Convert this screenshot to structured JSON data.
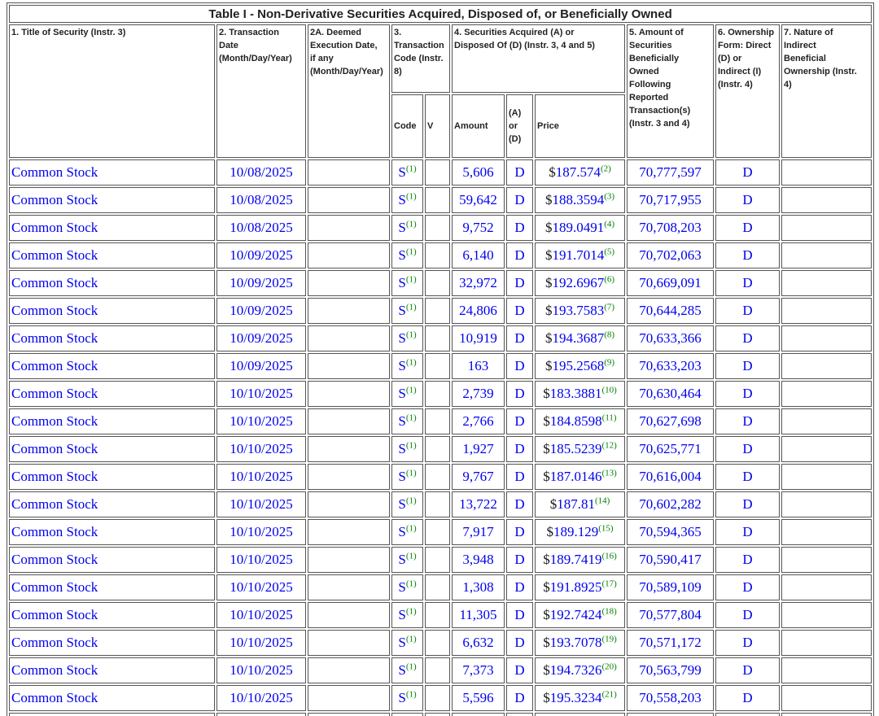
{
  "table": {
    "caption": "Table I - Non-Derivative Securities Acquired, Disposed of, or Beneficially Owned",
    "currency_symbol": "$",
    "columns": {
      "title": "1. Title of Security (Instr. 3)",
      "transaction_date": "2. Transaction\nDate\n(Month/Day/Year)",
      "deemed_execution_date": "2A. Deemed\nExecution Date,\nif any\n(Month/Day/Year)",
      "transaction_code": "3.\nTransaction\nCode (Instr.\n8)",
      "securities_acquired_disposed": "4. Securities Acquired (A) or\nDisposed Of (D) (Instr. 3, 4 and 5)",
      "amount_owned_following": "5. Amount of\nSecurities\nBeneficially\nOwned\nFollowing\nReported\nTransaction(s)\n(Instr. 3 and 4)",
      "ownership_form": "6. Ownership\nForm: Direct\n(D) or\nIndirect (I)\n(Instr. 4)",
      "nature_indirect": "7. Nature of\nIndirect\nBeneficial\nOwnership (Instr.\n4)",
      "sub_code": "Code",
      "sub_v": "V",
      "sub_amount": "Amount",
      "sub_ad": "(A) or\n(D)",
      "sub_price": "Price"
    },
    "rows": [
      {
        "title": "Common Stock",
        "date": "10/08/2025",
        "deemed": "",
        "code": "S",
        "code_fn": "(1)",
        "v": "",
        "amount": "5,606",
        "ad": "D",
        "price": "187.574",
        "price_fn": "(2)",
        "owned": "70,777,597",
        "form": "D",
        "nature": ""
      },
      {
        "title": "Common Stock",
        "date": "10/08/2025",
        "deemed": "",
        "code": "S",
        "code_fn": "(1)",
        "v": "",
        "amount": "59,642",
        "ad": "D",
        "price": "188.3594",
        "price_fn": "(3)",
        "owned": "70,717,955",
        "form": "D",
        "nature": ""
      },
      {
        "title": "Common Stock",
        "date": "10/08/2025",
        "deemed": "",
        "code": "S",
        "code_fn": "(1)",
        "v": "",
        "amount": "9,752",
        "ad": "D",
        "price": "189.0491",
        "price_fn": "(4)",
        "owned": "70,708,203",
        "form": "D",
        "nature": ""
      },
      {
        "title": "Common Stock",
        "date": "10/09/2025",
        "deemed": "",
        "code": "S",
        "code_fn": "(1)",
        "v": "",
        "amount": "6,140",
        "ad": "D",
        "price": "191.7014",
        "price_fn": "(5)",
        "owned": "70,702,063",
        "form": "D",
        "nature": ""
      },
      {
        "title": "Common Stock",
        "date": "10/09/2025",
        "deemed": "",
        "code": "S",
        "code_fn": "(1)",
        "v": "",
        "amount": "32,972",
        "ad": "D",
        "price": "192.6967",
        "price_fn": "(6)",
        "owned": "70,669,091",
        "form": "D",
        "nature": ""
      },
      {
        "title": "Common Stock",
        "date": "10/09/2025",
        "deemed": "",
        "code": "S",
        "code_fn": "(1)",
        "v": "",
        "amount": "24,806",
        "ad": "D",
        "price": "193.7583",
        "price_fn": "(7)",
        "owned": "70,644,285",
        "form": "D",
        "nature": ""
      },
      {
        "title": "Common Stock",
        "date": "10/09/2025",
        "deemed": "",
        "code": "S",
        "code_fn": "(1)",
        "v": "",
        "amount": "10,919",
        "ad": "D",
        "price": "194.3687",
        "price_fn": "(8)",
        "owned": "70,633,366",
        "form": "D",
        "nature": ""
      },
      {
        "title": "Common Stock",
        "date": "10/09/2025",
        "deemed": "",
        "code": "S",
        "code_fn": "(1)",
        "v": "",
        "amount": "163",
        "ad": "D",
        "price": "195.2568",
        "price_fn": "(9)",
        "owned": "70,633,203",
        "form": "D",
        "nature": ""
      },
      {
        "title": "Common Stock",
        "date": "10/10/2025",
        "deemed": "",
        "code": "S",
        "code_fn": "(1)",
        "v": "",
        "amount": "2,739",
        "ad": "D",
        "price": "183.3881",
        "price_fn": "(10)",
        "owned": "70,630,464",
        "form": "D",
        "nature": ""
      },
      {
        "title": "Common Stock",
        "date": "10/10/2025",
        "deemed": "",
        "code": "S",
        "code_fn": "(1)",
        "v": "",
        "amount": "2,766",
        "ad": "D",
        "price": "184.8598",
        "price_fn": "(11)",
        "owned": "70,627,698",
        "form": "D",
        "nature": ""
      },
      {
        "title": "Common Stock",
        "date": "10/10/2025",
        "deemed": "",
        "code": "S",
        "code_fn": "(1)",
        "v": "",
        "amount": "1,927",
        "ad": "D",
        "price": "185.5239",
        "price_fn": "(12)",
        "owned": "70,625,771",
        "form": "D",
        "nature": ""
      },
      {
        "title": "Common Stock",
        "date": "10/10/2025",
        "deemed": "",
        "code": "S",
        "code_fn": "(1)",
        "v": "",
        "amount": "9,767",
        "ad": "D",
        "price": "187.0146",
        "price_fn": "(13)",
        "owned": "70,616,004",
        "form": "D",
        "nature": ""
      },
      {
        "title": "Common Stock",
        "date": "10/10/2025",
        "deemed": "",
        "code": "S",
        "code_fn": "(1)",
        "v": "",
        "amount": "13,722",
        "ad": "D",
        "price": "187.81",
        "price_fn": "(14)",
        "owned": "70,602,282",
        "form": "D",
        "nature": ""
      },
      {
        "title": "Common Stock",
        "date": "10/10/2025",
        "deemed": "",
        "code": "S",
        "code_fn": "(1)",
        "v": "",
        "amount": "7,917",
        "ad": "D",
        "price": "189.129",
        "price_fn": "(15)",
        "owned": "70,594,365",
        "form": "D",
        "nature": ""
      },
      {
        "title": "Common Stock",
        "date": "10/10/2025",
        "deemed": "",
        "code": "S",
        "code_fn": "(1)",
        "v": "",
        "amount": "3,948",
        "ad": "D",
        "price": "189.7419",
        "price_fn": "(16)",
        "owned": "70,590,417",
        "form": "D",
        "nature": ""
      },
      {
        "title": "Common Stock",
        "date": "10/10/2025",
        "deemed": "",
        "code": "S",
        "code_fn": "(1)",
        "v": "",
        "amount": "1,308",
        "ad": "D",
        "price": "191.8925",
        "price_fn": "(17)",
        "owned": "70,589,109",
        "form": "D",
        "nature": ""
      },
      {
        "title": "Common Stock",
        "date": "10/10/2025",
        "deemed": "",
        "code": "S",
        "code_fn": "(1)",
        "v": "",
        "amount": "11,305",
        "ad": "D",
        "price": "192.7424",
        "price_fn": "(18)",
        "owned": "70,577,804",
        "form": "D",
        "nature": ""
      },
      {
        "title": "Common Stock",
        "date": "10/10/2025",
        "deemed": "",
        "code": "S",
        "code_fn": "(1)",
        "v": "",
        "amount": "6,632",
        "ad": "D",
        "price": "193.7078",
        "price_fn": "(19)",
        "owned": "70,571,172",
        "form": "D",
        "nature": ""
      },
      {
        "title": "Common Stock",
        "date": "10/10/2025",
        "deemed": "",
        "code": "S",
        "code_fn": "(1)",
        "v": "",
        "amount": "7,373",
        "ad": "D",
        "price": "194.7326",
        "price_fn": "(20)",
        "owned": "70,563,799",
        "form": "D",
        "nature": ""
      },
      {
        "title": "Common Stock",
        "date": "10/10/2025",
        "deemed": "",
        "code": "S",
        "code_fn": "(1)",
        "v": "",
        "amount": "5,596",
        "ad": "D",
        "price": "195.3234",
        "price_fn": "(21)",
        "owned": "70,558,203",
        "form": "D",
        "nature": ""
      }
    ],
    "colors": {
      "value_blue": "#0000ee",
      "footnote_green": "#008000",
      "border_gray": "#555555"
    }
  }
}
